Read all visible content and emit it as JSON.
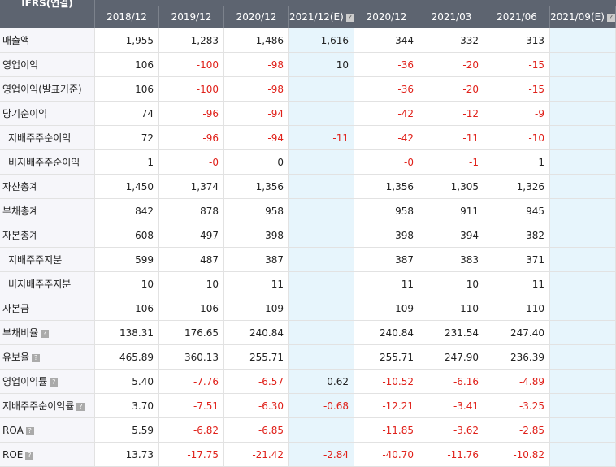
{
  "table": {
    "title": "IFRS(연결)",
    "columns": [
      "2018/12",
      "2019/12",
      "2020/12",
      "2021/12(E)",
      "2020/12",
      "2021/03",
      "2021/06",
      "2021/09(E)"
    ],
    "rows": [
      {
        "label": "매출액",
        "cells": [
          "1,955",
          "1,283",
          "1,486",
          "1,616",
          "344",
          "332",
          "313",
          null
        ]
      },
      {
        "label": "영업이익",
        "cells": [
          "106",
          "-100",
          "-98",
          "10",
          "-36",
          "-20",
          "-15",
          null
        ]
      },
      {
        "label": "영업이익(발표기준)",
        "cells": [
          "106",
          "-100",
          "-98",
          null,
          "-36",
          "-20",
          "-15",
          null
        ]
      },
      {
        "label": "당기순이익",
        "cells": [
          "74",
          "-96",
          "-94",
          null,
          "-42",
          "-12",
          "-9",
          null
        ]
      },
      {
        "label": "지배주주순이익",
        "cells": [
          "72",
          "-96",
          "-94",
          "-11",
          "-42",
          "-11",
          "-10",
          null
        ]
      },
      {
        "label": "비지배주주순이익",
        "cells": [
          "1",
          "-0",
          "0",
          null,
          "-0",
          "-1",
          "1",
          null
        ]
      },
      {
        "label": "자산총계",
        "cells": [
          "1,450",
          "1,374",
          "1,356",
          null,
          "1,356",
          "1,305",
          "1,326",
          null
        ]
      },
      {
        "label": "부채총계",
        "cells": [
          "842",
          "878",
          "958",
          null,
          "958",
          "911",
          "945",
          null
        ]
      },
      {
        "label": "자본총계",
        "cells": [
          "608",
          "497",
          "398",
          null,
          "398",
          "394",
          "382",
          null
        ]
      },
      {
        "label": "지배주주지분",
        "cells": [
          "599",
          "487",
          "387",
          null,
          "387",
          "383",
          "371",
          null
        ]
      },
      {
        "label": "비지배주주지분",
        "cells": [
          "10",
          "10",
          "11",
          null,
          "11",
          "10",
          "11",
          null
        ]
      },
      {
        "label": "자본금",
        "cells": [
          "106",
          "106",
          "109",
          null,
          "109",
          "110",
          "110",
          null
        ]
      },
      {
        "label": "부채비율",
        "cells": [
          "138.31",
          "176.65",
          "240.84",
          null,
          "240.84",
          "231.54",
          "247.40",
          null
        ]
      },
      {
        "label": "유보율",
        "cells": [
          "465.89",
          "360.13",
          "255.71",
          null,
          "255.71",
          "247.90",
          "236.39",
          null
        ]
      },
      {
        "label": "영업이익률",
        "cells": [
          "5.40",
          "-7.76",
          "-6.57",
          "0.62",
          "-10.52",
          "-6.16",
          "-4.89",
          null
        ]
      },
      {
        "label": "지배주주순이익률",
        "cells": [
          "3.70",
          "-7.51",
          "-6.30",
          "-0.68",
          "-12.21",
          "-3.41",
          "-3.25",
          null
        ]
      },
      {
        "label": "ROA",
        "cells": [
          "5.59",
          "-6.82",
          "-6.85",
          null,
          "-11.85",
          "-3.62",
          "-2.85",
          null
        ]
      },
      {
        "label": "ROE",
        "cells": [
          "13.73",
          "-17.75",
          "-21.42",
          "-2.84",
          "-40.70",
          "-11.76",
          "-10.82",
          null
        ]
      }
    ]
  }
}
